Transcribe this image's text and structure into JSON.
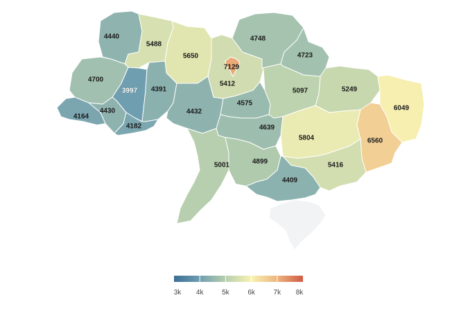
{
  "legend": {
    "ticks": [
      "3k",
      "4k",
      "5k",
      "6k",
      "7k",
      "8k"
    ],
    "tick_values": [
      3000,
      4000,
      5000,
      6000,
      7000,
      8000
    ],
    "range": [
      3000,
      8000
    ],
    "colors": [
      "#3a6f94",
      "#6f9eb0",
      "#b7cfae",
      "#f7f2b3",
      "#eeb47d",
      "#cf5b44"
    ]
  },
  "no_data_color": "#f2f3f5",
  "chart_data": {
    "type": "choropleth",
    "regions": [
      {
        "key": "volyn",
        "value": 4440,
        "label": "4440"
      },
      {
        "key": "rivne",
        "value": 5488,
        "label": "5488"
      },
      {
        "key": "zhytomyr",
        "value": 5650,
        "label": "5650"
      },
      {
        "key": "kyiv-oblast",
        "value": 5412,
        "label": "5412"
      },
      {
        "key": "kyiv-city",
        "value": 7129,
        "label": "7129"
      },
      {
        "key": "chernihiv",
        "value": 4748,
        "label": "4748"
      },
      {
        "key": "sumy",
        "value": 4723,
        "label": "4723"
      },
      {
        "key": "lviv",
        "value": 4700,
        "label": "4700"
      },
      {
        "key": "ternopil",
        "value": 3997,
        "label": "3997"
      },
      {
        "key": "khmelnytskyi",
        "value": 4391,
        "label": "4391"
      },
      {
        "key": "vinnytsia",
        "value": 4432,
        "label": "4432"
      },
      {
        "key": "cherkasy",
        "value": 4575,
        "label": "4575"
      },
      {
        "key": "poltava",
        "value": 5097,
        "label": "5097"
      },
      {
        "key": "kharkiv",
        "value": 5249,
        "label": "5249"
      },
      {
        "key": "luhansk",
        "value": 6049,
        "label": "6049"
      },
      {
        "key": "zakarpattia",
        "value": 4164,
        "label": "4164"
      },
      {
        "key": "ivano-frankivsk",
        "value": 4430,
        "label": "4430"
      },
      {
        "key": "chernivtsi",
        "value": 4182,
        "label": "4182"
      },
      {
        "key": "kirovohrad",
        "value": 4639,
        "label": "4639"
      },
      {
        "key": "dnipropetrovsk",
        "value": 5804,
        "label": "5804"
      },
      {
        "key": "donetsk",
        "value": 6560,
        "label": "6560"
      },
      {
        "key": "odesa",
        "value": 5001,
        "label": "5001"
      },
      {
        "key": "mykolaiv",
        "value": 4899,
        "label": "4899"
      },
      {
        "key": "zaporizhzhia",
        "value": 5416,
        "label": "5416"
      },
      {
        "key": "kherson",
        "value": 4409,
        "label": "4409"
      },
      {
        "key": "crimea",
        "value": null,
        "label": ""
      }
    ]
  }
}
